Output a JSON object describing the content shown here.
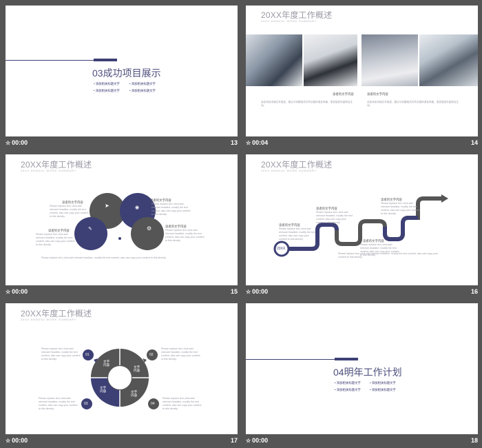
{
  "slides": [
    {
      "number": "13",
      "time": "00:00",
      "title": "03成功项目展示",
      "bullets": [
        "添加相关标题文字",
        "添加相关标题文字",
        "添加相关标题文字",
        "添加相关标题文字"
      ]
    },
    {
      "number": "14",
      "time": "00:04",
      "title": "20XX年度工作概述",
      "subtitle": "20XX ANNUAL WORK SUMMARY",
      "label_left": "读者的文字内容",
      "label_right": "读者的文字内容",
      "body": "此处添加详细文本描述，建议与标题相关并符合整体语言风格，语言描述尽量简洁生动。"
    },
    {
      "number": "15",
      "time": "00:00",
      "title": "20XX年度工作概述",
      "subtitle": "20XX ANNUAL WORK SUMMARY",
      "labels": [
        "读者的文字内容",
        "读者的文字内容",
        "读者的文字内容",
        "读者的文字内容"
      ],
      "body": "Please replace text, click add relevant headline, modify the text content, also can copy your content to this directly."
    },
    {
      "number": "16",
      "time": "00:00",
      "title": "20XX年度工作概述",
      "subtitle": "20XX ANNUAL WORK SUMMARY",
      "start_label": "20XX",
      "labels": [
        "读者的文字内容",
        "读者的文字内容",
        "读者的文字内容",
        "读者的文字内容"
      ],
      "body": "Please replace text, click add relevant headline, modify the text content, also can copy your content to this directly."
    },
    {
      "number": "17",
      "time": "00:00",
      "title": "20XX年度工作概述",
      "subtitle": "20XX ANNUAL WORK SUMMARY",
      "markers": [
        "01",
        "02",
        "03",
        "04"
      ],
      "segment_text": "文字\n内容",
      "body": "Please replace text, click add relevant headline, modify the text content, also can copy your content to this directly."
    },
    {
      "number": "18",
      "time": "00:00",
      "title": "04明年工作计划",
      "bullets": [
        "添加相关标题文字",
        "添加相关标题文字",
        "添加相关标题文字",
        "添加相关标题文字"
      ]
    }
  ],
  "colors": {
    "navy": "#3d4075",
    "gray": "#555555",
    "bg": "#555555"
  }
}
